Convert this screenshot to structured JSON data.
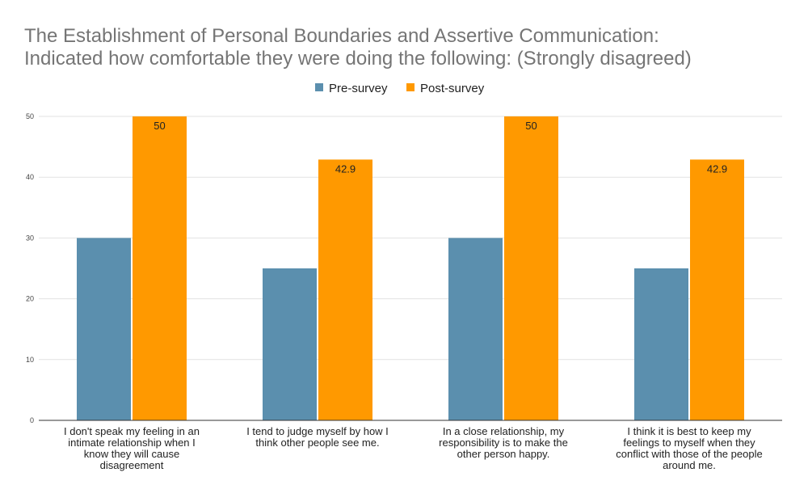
{
  "chart_data": {
    "type": "bar",
    "title_lines": [
      "The Establishment of Personal Boundaries and Assertive Communication:",
      "Indicated how comfortable they were doing the following: (Strongly disagreed)"
    ],
    "categories": [
      [
        "I don't speak my feeling in an",
        "intimate relationship when I",
        "know they will cause",
        "disagreement"
      ],
      [
        "I tend to judge myself by how I",
        "think other people see me."
      ],
      [
        "In a close relationship, my",
        "responsibility is to make the",
        "other person happy."
      ],
      [
        "I think it is best to keep my",
        "feelings to myself when they",
        "conflict with those of the people",
        "around me."
      ]
    ],
    "series": [
      {
        "name": "Pre-survey",
        "color": "#5b8fae",
        "values": [
          30,
          25,
          30,
          25
        ],
        "show_labels": false
      },
      {
        "name": "Post-survey",
        "color": "#ff9900",
        "values": [
          50,
          42.9,
          50,
          42.9
        ],
        "show_labels": true
      }
    ],
    "ylim": [
      0,
      50
    ],
    "yticks": [
      0,
      10,
      20,
      30,
      40,
      50
    ],
    "grid": true,
    "legend_position": "top-center"
  }
}
